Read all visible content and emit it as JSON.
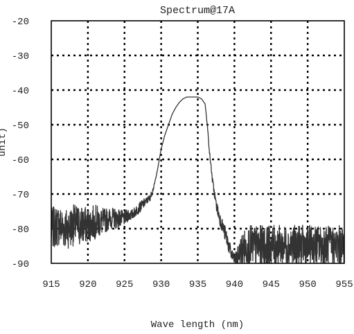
{
  "chart_data": {
    "type": "line",
    "title": "Spectrum@17A",
    "xlabel": "Wave length (nm)",
    "ylabel": "unit)",
    "xlim": [
      915,
      955
    ],
    "ylim": [
      -90,
      -20
    ],
    "x_ticks": [
      915,
      920,
      925,
      930,
      935,
      940,
      945,
      950,
      955
    ],
    "y_ticks": [
      -20,
      -30,
      -40,
      -50,
      -60,
      -70,
      -80,
      -90
    ],
    "grid": true,
    "legend": "none",
    "colors": {
      "line": "#333333",
      "grid": "#000000"
    },
    "series": [
      {
        "name": "",
        "x": [
          915.0,
          916.0,
          917.0,
          918.0,
          919.0,
          920.0,
          921.0,
          922.0,
          923.0,
          924.0,
          925.0,
          925.5,
          926.0,
          926.5,
          927.0,
          927.5,
          928.0,
          928.5,
          929.0,
          929.5,
          930.0,
          930.5,
          931.0,
          931.5,
          932.0,
          932.5,
          933.0,
          933.5,
          934.0,
          934.5,
          935.0,
          935.5,
          936.0,
          936.3,
          936.6,
          937.0,
          937.5,
          938.0,
          938.5,
          939.0,
          939.5,
          940.0,
          940.5,
          941.0,
          942.0,
          943.0,
          944.0,
          945.0,
          946.0,
          947.0,
          948.0,
          949.0,
          950.0,
          951.0,
          952.0,
          953.0,
          954.0,
          955.0
        ],
        "values": [
          -80,
          -79,
          -80,
          -79,
          -79,
          -79,
          -78,
          -78,
          -77,
          -77,
          -77,
          -76,
          -76,
          -75,
          -74,
          -73,
          -72,
          -71,
          -68,
          -63,
          -57,
          -53,
          -50,
          -47,
          -45,
          -43.5,
          -42.5,
          -42,
          -42,
          -42,
          -42,
          -42.5,
          -44,
          -50,
          -58,
          -66,
          -73,
          -77,
          -80,
          -83,
          -87,
          -89,
          -88,
          -86,
          -85,
          -85,
          -85,
          -85,
          -85,
          -85,
          -85,
          -85,
          -85,
          -85,
          -85,
          -85,
          -85,
          -85
        ],
        "noise": [
          6,
          6,
          6,
          6,
          6,
          5,
          5,
          4,
          3,
          3,
          2,
          2,
          1.5,
          1.5,
          1.5,
          1.5,
          1,
          1,
          0.5,
          0,
          0,
          0,
          0,
          0,
          0,
          0,
          0,
          0,
          0,
          0,
          0,
          0,
          0,
          0.5,
          0.5,
          1,
          1.5,
          2,
          2,
          2.5,
          2,
          1.5,
          3,
          5,
          6,
          6,
          6,
          6,
          6,
          6,
          6,
          6,
          6,
          6,
          6,
          6,
          6,
          6
        ]
      }
    ]
  }
}
